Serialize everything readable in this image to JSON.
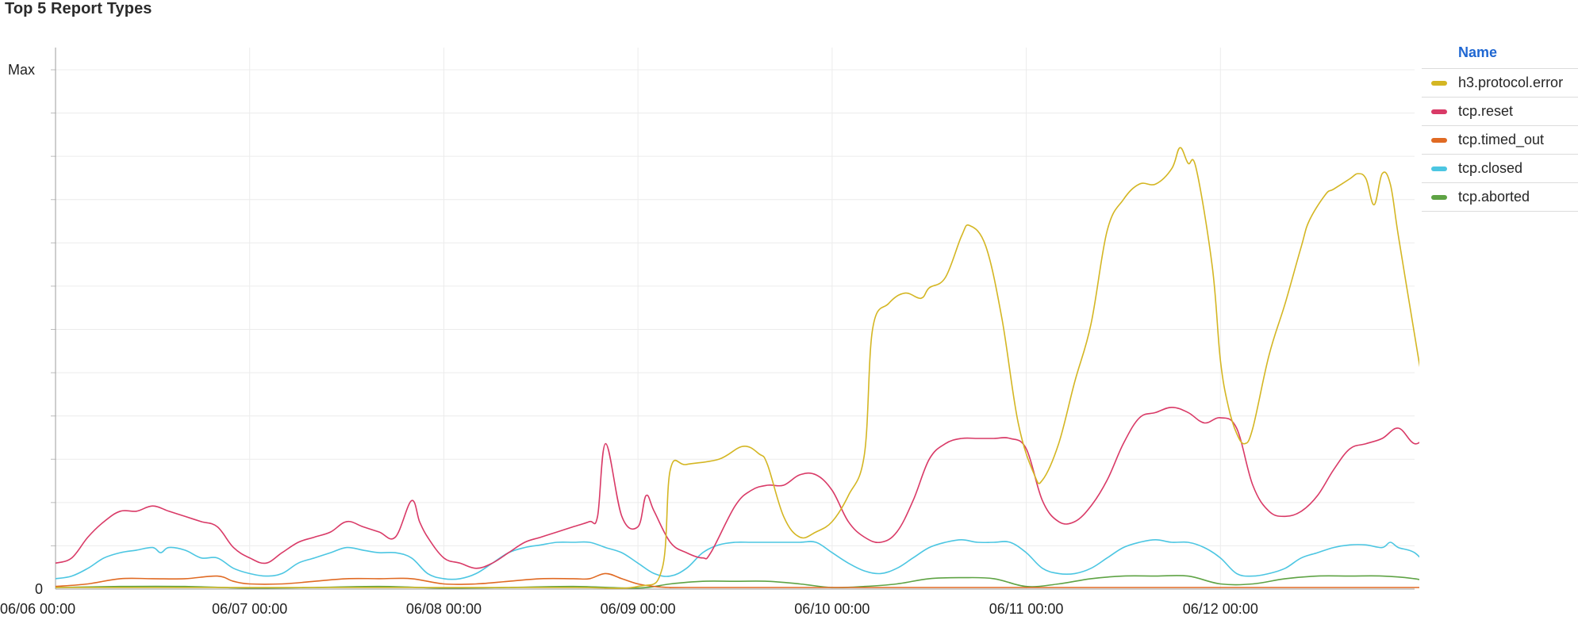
{
  "page": {
    "title": "Top 5 Report Types"
  },
  "legend": {
    "header": "Name"
  },
  "chart_data": {
    "type": "line",
    "title": "Top 5 Report Types",
    "y_tick_labels": [
      "0",
      "Max"
    ],
    "ylim": [
      0,
      100
    ],
    "y_max_value": 100,
    "x_tick_labels": [
      "06/06 00:00",
      "06/07 00:00",
      "06/08 00:00",
      "06/09 00:00",
      "06/10 00:00",
      "06/11 00:00",
      "06/12 00:00"
    ],
    "x_tick_hours": [
      0,
      24,
      48,
      72,
      96,
      120,
      144
    ],
    "xlim_hours": [
      0,
      168
    ],
    "grid": true,
    "legend_position": "right",
    "series": [
      {
        "name": "h3.protocol.error",
        "color": "#d4b623",
        "points": [
          [
            0,
            0.3
          ],
          [
            24,
            0.3
          ],
          [
            48,
            0.3
          ],
          [
            64,
            0.3
          ],
          [
            72,
            0.5
          ],
          [
            75,
            4
          ],
          [
            76,
            23
          ],
          [
            78,
            24
          ],
          [
            82,
            25
          ],
          [
            85,
            27.5
          ],
          [
            87,
            26
          ],
          [
            88,
            24
          ],
          [
            90,
            14
          ],
          [
            92,
            10
          ],
          [
            94,
            11
          ],
          [
            96,
            13
          ],
          [
            98,
            18
          ],
          [
            100,
            26
          ],
          [
            101,
            50
          ],
          [
            103,
            55
          ],
          [
            105,
            57
          ],
          [
            107,
            56
          ],
          [
            108,
            58
          ],
          [
            110,
            60
          ],
          [
            112,
            68
          ],
          [
            113,
            70
          ],
          [
            115,
            66
          ],
          [
            117,
            52
          ],
          [
            119,
            32
          ],
          [
            121,
            22
          ],
          [
            122,
            21
          ],
          [
            124,
            28
          ],
          [
            126,
            40
          ],
          [
            128,
            51
          ],
          [
            130,
            69
          ],
          [
            132,
            75
          ],
          [
            134,
            78
          ],
          [
            136,
            78
          ],
          [
            138,
            81
          ],
          [
            139,
            85
          ],
          [
            140,
            82
          ],
          [
            141,
            81
          ],
          [
            143,
            62
          ],
          [
            144,
            44
          ],
          [
            145,
            35
          ],
          [
            146,
            30
          ],
          [
            147,
            28
          ],
          [
            148,
            31
          ],
          [
            150,
            45
          ],
          [
            152,
            55
          ],
          [
            154,
            66
          ],
          [
            155,
            71
          ],
          [
            157,
            76
          ],
          [
            158,
            77
          ],
          [
            160,
            79
          ],
          [
            161,
            80
          ],
          [
            162,
            79
          ],
          [
            163,
            74
          ],
          [
            164,
            80
          ],
          [
            165,
            78
          ],
          [
            166,
            68
          ],
          [
            168,
            49
          ],
          [
            169,
            40
          ],
          [
            170,
            34
          ],
          [
            171,
            28
          ],
          [
            172,
            27
          ]
        ]
      },
      {
        "name": "tcp.reset",
        "color": "#d93a67",
        "points": [
          [
            0,
            5
          ],
          [
            2,
            6
          ],
          [
            4,
            10
          ],
          [
            6,
            13
          ],
          [
            8,
            15
          ],
          [
            10,
            15
          ],
          [
            12,
            16
          ],
          [
            14,
            15
          ],
          [
            16,
            14
          ],
          [
            18,
            13
          ],
          [
            20,
            12
          ],
          [
            22,
            8
          ],
          [
            24,
            6
          ],
          [
            26,
            5
          ],
          [
            28,
            7
          ],
          [
            30,
            9
          ],
          [
            32,
            10
          ],
          [
            34,
            11
          ],
          [
            36,
            13
          ],
          [
            38,
            12
          ],
          [
            40,
            11
          ],
          [
            42,
            10
          ],
          [
            44,
            17
          ],
          [
            45,
            13
          ],
          [
            46,
            10
          ],
          [
            48,
            6
          ],
          [
            50,
            5
          ],
          [
            52,
            4
          ],
          [
            54,
            5
          ],
          [
            56,
            7
          ],
          [
            58,
            9
          ],
          [
            60,
            10
          ],
          [
            62,
            11
          ],
          [
            64,
            12
          ],
          [
            66,
            13
          ],
          [
            67,
            14
          ],
          [
            68,
            28
          ],
          [
            70,
            14
          ],
          [
            72,
            12
          ],
          [
            73,
            18
          ],
          [
            74,
            15
          ],
          [
            76,
            9
          ],
          [
            78,
            7
          ],
          [
            80,
            6
          ],
          [
            81,
            7
          ],
          [
            84,
            16
          ],
          [
            86,
            19
          ],
          [
            88,
            20
          ],
          [
            90,
            20
          ],
          [
            92,
            22
          ],
          [
            94,
            22
          ],
          [
            96,
            19
          ],
          [
            98,
            13
          ],
          [
            100,
            10
          ],
          [
            102,
            9
          ],
          [
            104,
            11
          ],
          [
            106,
            17
          ],
          [
            108,
            25
          ],
          [
            110,
            28
          ],
          [
            112,
            29
          ],
          [
            114,
            29
          ],
          [
            116,
            29
          ],
          [
            118,
            29
          ],
          [
            120,
            27
          ],
          [
            122,
            17
          ],
          [
            124,
            13
          ],
          [
            126,
            13
          ],
          [
            128,
            16
          ],
          [
            130,
            21
          ],
          [
            132,
            28
          ],
          [
            134,
            33
          ],
          [
            136,
            34
          ],
          [
            138,
            35
          ],
          [
            140,
            34
          ],
          [
            142,
            32
          ],
          [
            144,
            33
          ],
          [
            146,
            31
          ],
          [
            148,
            20
          ],
          [
            150,
            15
          ],
          [
            152,
            14
          ],
          [
            154,
            15
          ],
          [
            156,
            18
          ],
          [
            158,
            23
          ],
          [
            160,
            27
          ],
          [
            162,
            28
          ],
          [
            164,
            29
          ],
          [
            166,
            31
          ],
          [
            168,
            28
          ],
          [
            170,
            29
          ],
          [
            172,
            22
          ],
          [
            174,
            17
          ],
          [
            175,
            15
          ]
        ]
      },
      {
        "name": "tcp.timed_out",
        "color": "#e06a23",
        "points": [
          [
            0,
            0.5
          ],
          [
            4,
            1
          ],
          [
            8,
            2
          ],
          [
            12,
            2
          ],
          [
            16,
            2
          ],
          [
            20,
            2.5
          ],
          [
            22,
            1.5
          ],
          [
            24,
            1
          ],
          [
            28,
            1
          ],
          [
            32,
            1.5
          ],
          [
            36,
            2
          ],
          [
            40,
            2
          ],
          [
            44,
            2
          ],
          [
            48,
            1
          ],
          [
            52,
            1
          ],
          [
            56,
            1.5
          ],
          [
            60,
            2
          ],
          [
            64,
            2
          ],
          [
            66,
            2
          ],
          [
            68,
            3
          ],
          [
            70,
            2
          ],
          [
            72,
            1
          ],
          [
            74,
            0.5
          ],
          [
            76,
            0.3
          ],
          [
            78,
            0.3
          ],
          [
            96,
            0.3
          ],
          [
            144,
            0.3
          ],
          [
            175,
            0.3
          ]
        ]
      },
      {
        "name": "tcp.closed",
        "color": "#4cc6e2",
        "points": [
          [
            0,
            2
          ],
          [
            2,
            2.5
          ],
          [
            4,
            4
          ],
          [
            6,
            6
          ],
          [
            8,
            7
          ],
          [
            10,
            7.5
          ],
          [
            12,
            8
          ],
          [
            13,
            7
          ],
          [
            14,
            8
          ],
          [
            16,
            7.5
          ],
          [
            18,
            6
          ],
          [
            20,
            6
          ],
          [
            22,
            4
          ],
          [
            24,
            3
          ],
          [
            26,
            2.5
          ],
          [
            28,
            3
          ],
          [
            30,
            5
          ],
          [
            32,
            6
          ],
          [
            34,
            7
          ],
          [
            36,
            8
          ],
          [
            38,
            7.5
          ],
          [
            40,
            7
          ],
          [
            42,
            7
          ],
          [
            44,
            6
          ],
          [
            46,
            3
          ],
          [
            48,
            2
          ],
          [
            50,
            2
          ],
          [
            52,
            3
          ],
          [
            54,
            5
          ],
          [
            56,
            7
          ],
          [
            58,
            8
          ],
          [
            60,
            8.5
          ],
          [
            62,
            9
          ],
          [
            64,
            9
          ],
          [
            66,
            9
          ],
          [
            68,
            8
          ],
          [
            70,
            7
          ],
          [
            72,
            5
          ],
          [
            74,
            3
          ],
          [
            76,
            2.5
          ],
          [
            78,
            4
          ],
          [
            80,
            7
          ],
          [
            82,
            8.5
          ],
          [
            84,
            9
          ],
          [
            86,
            9
          ],
          [
            88,
            9
          ],
          [
            90,
            9
          ],
          [
            92,
            9
          ],
          [
            94,
            9
          ],
          [
            96,
            7
          ],
          [
            98,
            5
          ],
          [
            100,
            3.5
          ],
          [
            102,
            3
          ],
          [
            104,
            4
          ],
          [
            106,
            6
          ],
          [
            108,
            8
          ],
          [
            110,
            9
          ],
          [
            112,
            9.5
          ],
          [
            114,
            9
          ],
          [
            116,
            9
          ],
          [
            118,
            9
          ],
          [
            120,
            7
          ],
          [
            122,
            4
          ],
          [
            124,
            3
          ],
          [
            126,
            3
          ],
          [
            128,
            4
          ],
          [
            130,
            6
          ],
          [
            132,
            8
          ],
          [
            134,
            9
          ],
          [
            136,
            9.5
          ],
          [
            138,
            9
          ],
          [
            140,
            9
          ],
          [
            142,
            8
          ],
          [
            144,
            6
          ],
          [
            146,
            3
          ],
          [
            148,
            2.5
          ],
          [
            150,
            3
          ],
          [
            152,
            4
          ],
          [
            154,
            6
          ],
          [
            156,
            7
          ],
          [
            158,
            8
          ],
          [
            160,
            8.5
          ],
          [
            162,
            8.5
          ],
          [
            164,
            8
          ],
          [
            165,
            9
          ],
          [
            166,
            8
          ],
          [
            168,
            7
          ],
          [
            170,
            4
          ],
          [
            172,
            2.5
          ],
          [
            175,
            2.5
          ]
        ]
      },
      {
        "name": "tcp.aborted",
        "color": "#5ea344",
        "points": [
          [
            0,
            0.3
          ],
          [
            8,
            0.5
          ],
          [
            16,
            0.5
          ],
          [
            24,
            0.2
          ],
          [
            32,
            0.3
          ],
          [
            40,
            0.5
          ],
          [
            48,
            0.2
          ],
          [
            56,
            0.3
          ],
          [
            64,
            0.5
          ],
          [
            72,
            0.2
          ],
          [
            76,
            1
          ],
          [
            80,
            1.5
          ],
          [
            84,
            1.5
          ],
          [
            88,
            1.5
          ],
          [
            92,
            1
          ],
          [
            96,
            0.3
          ],
          [
            100,
            0.5
          ],
          [
            104,
            1
          ],
          [
            108,
            2
          ],
          [
            112,
            2.2
          ],
          [
            116,
            2
          ],
          [
            120,
            0.5
          ],
          [
            124,
            1
          ],
          [
            128,
            2
          ],
          [
            132,
            2.5
          ],
          [
            136,
            2.5
          ],
          [
            140,
            2.5
          ],
          [
            144,
            1
          ],
          [
            148,
            1
          ],
          [
            152,
            2
          ],
          [
            156,
            2.5
          ],
          [
            160,
            2.5
          ],
          [
            164,
            2.5
          ],
          [
            168,
            2
          ],
          [
            172,
            0.8
          ],
          [
            175,
            0.8
          ]
        ]
      }
    ]
  }
}
